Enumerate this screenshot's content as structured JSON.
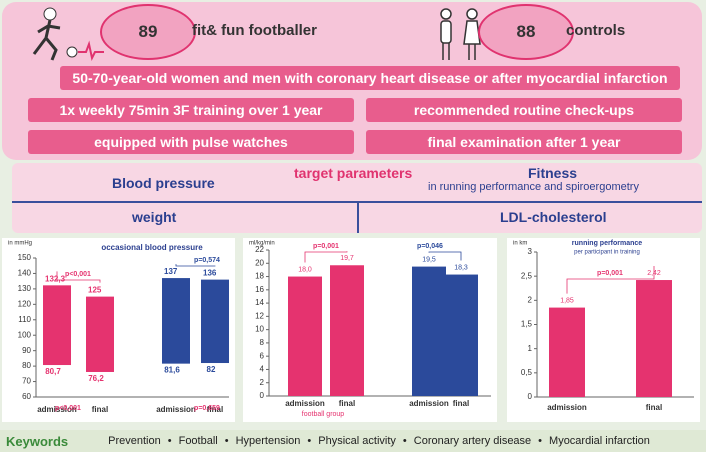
{
  "header": {
    "group_count": "89",
    "group_label": "fit& fun footballer",
    "control_count": "88",
    "control_label": "controls"
  },
  "population": "50-70-year-old women and men with coronary heart disease or after myocardial infarction",
  "study_design": {
    "intervention": [
      "1x weekly 75min 3F training over 1 year",
      "equipped with pulse watches"
    ],
    "control": [
      "recommended routine check-ups",
      "final examination after 1 year"
    ]
  },
  "target_parameters": {
    "title": "target parameters",
    "items": [
      "Blood pressure",
      "weight",
      "LDL-cholesterol"
    ],
    "fitness": {
      "label": "Fitness",
      "detail": "in running performance and spiroergometry"
    }
  },
  "chart_data": [
    {
      "type": "range-bar",
      "title": "occasional blood pressure",
      "y_label": "in mmHg",
      "categories": [
        "admission",
        "final",
        "admission",
        "final"
      ],
      "upper": [
        132.3,
        125,
        137,
        136
      ],
      "upper_value_labels": [
        "132,3",
        "125",
        "137",
        "136"
      ],
      "lower": [
        80.7,
        76.2,
        81.6,
        82
      ],
      "lower_value_labels": [
        "80,7",
        "76,2",
        "81,6",
        "82"
      ],
      "colors": [
        "#e5336f",
        "#e5336f",
        "#2b4a9b",
        "#2b4a9b"
      ],
      "ylim": [
        60,
        150
      ],
      "yticks": [
        60,
        70,
        80,
        90,
        100,
        110,
        120,
        130,
        140,
        150
      ],
      "annotations": [
        "p<0,001",
        "p<0,001",
        "p=0,574",
        "p=0,659"
      ]
    },
    {
      "type": "bar",
      "y_label": "ml/kg/min",
      "categories": [
        "admission",
        "final",
        "admission",
        "final"
      ],
      "values": [
        18.0,
        19.7,
        19.5,
        18.3
      ],
      "value_labels": [
        "18,0",
        "19,7",
        "19,5",
        "18,3"
      ],
      "colors": [
        "#e5336f",
        "#e5336f",
        "#2b4a9b",
        "#2b4a9b"
      ],
      "ylim": [
        0,
        22
      ],
      "yticks": [
        0,
        2,
        4,
        6,
        8,
        10,
        12,
        14,
        16,
        18,
        20,
        22
      ],
      "annotations": [
        "p=0,001",
        "p=0,046"
      ],
      "group_label": "football group"
    },
    {
      "type": "bar",
      "title": "running performance",
      "subtitle": "per participant in training",
      "y_label": "in km",
      "categories": [
        "admission",
        "final"
      ],
      "values": [
        1.85,
        2.42
      ],
      "value_labels": [
        "1,85",
        "2,42"
      ],
      "colors": [
        "#e5336f",
        "#e5336f"
      ],
      "ylim": [
        0,
        3
      ],
      "yticks": [
        0,
        {
          "value": 0.5,
          "label": "0,5"
        },
        1,
        {
          "value": 1.5,
          "label": "1,5"
        },
        2,
        {
          "value": 2.5,
          "label": "2,5"
        },
        3
      ],
      "annotations": [
        "p=0,001"
      ]
    }
  ],
  "keywords": {
    "label": "Keywords",
    "items": [
      "Prevention",
      "Football",
      "Hypertension",
      "Physical activity",
      "Coronary artery disease",
      "Myocardial infarction"
    ]
  }
}
